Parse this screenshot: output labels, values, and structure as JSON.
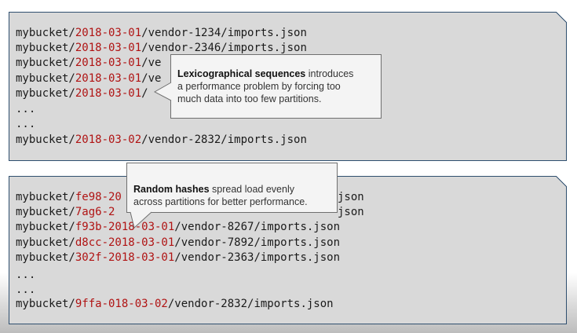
{
  "top_panel": {
    "lines": [
      {
        "prefix": "mybucket/",
        "highlight": "2018-03-01",
        "suffix": "/vendor-1234/imports.json"
      },
      {
        "prefix": "mybucket/",
        "highlight": "2018-03-01",
        "suffix": "/vendor-2346/imports.json"
      },
      {
        "prefix": "mybucket/",
        "highlight": "2018-03-01",
        "suffix": "/ve"
      },
      {
        "prefix": "mybucket/",
        "highlight": "2018-03-01",
        "suffix": "/ve"
      },
      {
        "prefix": "mybucket/",
        "highlight": "2018-03-01",
        "suffix": "/"
      },
      {
        "prefix": "...",
        "highlight": "",
        "suffix": ""
      },
      {
        "prefix": "...",
        "highlight": "",
        "suffix": ""
      },
      {
        "prefix": "mybucket/",
        "highlight": "2018-03-02",
        "suffix": "/vendor-2832/imports.json"
      }
    ],
    "callout": {
      "bold": "Lexicographical sequences",
      "rest_line1": " introduces",
      "line2": "a performance problem by forcing too",
      "line3": "much data into too few partitions."
    }
  },
  "bottom_panel": {
    "lines": [
      {
        "prefix": "mybucket/",
        "highlight": "fe98-20",
        "suffix": ""
      },
      {
        "prefix": "mybucket/",
        "highlight": "7ag6-2",
        "suffix": ""
      },
      {
        "prefix": "mybucket/",
        "highlight": "f93b-2018-03-01",
        "suffix": "/vendor-8267/imports.json"
      },
      {
        "prefix": "mybucket/",
        "highlight": "d8cc-2018-03-01",
        "suffix": "/vendor-7892/imports.json"
      },
      {
        "prefix": "mybucket/",
        "highlight": "302f-2018-03-01",
        "suffix": "/vendor-2363/imports.json"
      },
      {
        "prefix": "...",
        "highlight": "",
        "suffix": ""
      },
      {
        "prefix": "...",
        "highlight": "",
        "suffix": ""
      },
      {
        "prefix": "mybucket/",
        "highlight": "9ffa-018-03-02",
        "suffix": "/vendor-2832/imports.json"
      }
    ],
    "right_fragments": [
      "json",
      "json"
    ],
    "callout": {
      "bold": "Random hashes",
      "rest_line1": " spread load evenly",
      "line2": "across partitions for better performance."
    }
  },
  "colors": {
    "highlight": "#b01313",
    "panel": "#d9d9d9",
    "panel_border": "#2f4f6f",
    "callout_bg": "#f4f4f4"
  }
}
